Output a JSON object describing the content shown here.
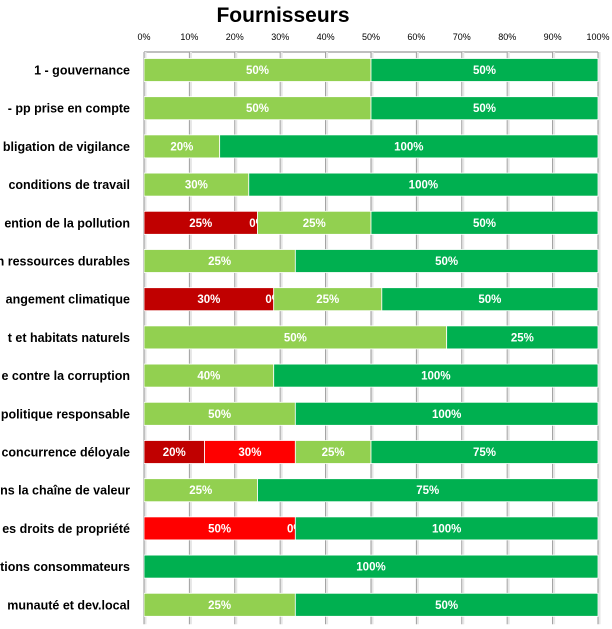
{
  "chart_data": {
    "type": "bar",
    "orientation": "horizontal",
    "stacking": "percent",
    "title": "Fournisseurs",
    "xlabel": "",
    "ylabel": "",
    "xlim": [
      0,
      100
    ],
    "x_ticks": [
      "0%",
      "10%",
      "20%",
      "30%",
      "40%",
      "50%",
      "60%",
      "70%",
      "80%",
      "90%",
      "100%"
    ],
    "x_axis_position": "top",
    "grid": true,
    "legend": "none",
    "categories": [
      "1 - gouvernance",
      "- pp prise en compte",
      "bligation de vigilance",
      "conditions de travail",
      "ention de la pollution",
      "n ressources durables",
      "angement climatique",
      "t et habitats naturels",
      "e contre la corruption",
      "politique responsable",
      "concurrence déloyale",
      "ns la chaîne de valeur",
      "es droits de propriété",
      "tions consommateurs",
      "munauté et dev.local"
    ],
    "series": [
      {
        "color": "#c00000",
        "values": [
          0,
          0,
          0,
          0,
          25,
          0,
          30,
          0,
          0,
          0,
          20,
          0,
          0,
          0,
          0
        ]
      },
      {
        "color": "#ff0000",
        "values": [
          null,
          null,
          null,
          null,
          0,
          null,
          0,
          null,
          null,
          null,
          30,
          null,
          50,
          null,
          null
        ]
      },
      {
        "color": "#92d050",
        "values": [
          50,
          50,
          20,
          30,
          25,
          25,
          25,
          50,
          40,
          50,
          25,
          25,
          0,
          null,
          25
        ]
      },
      {
        "color": "#00b050",
        "values": [
          50,
          50,
          100,
          100,
          50,
          50,
          50,
          25,
          100,
          100,
          75,
          75,
          100,
          100,
          50
        ]
      }
    ],
    "value_format": "{v}%"
  }
}
